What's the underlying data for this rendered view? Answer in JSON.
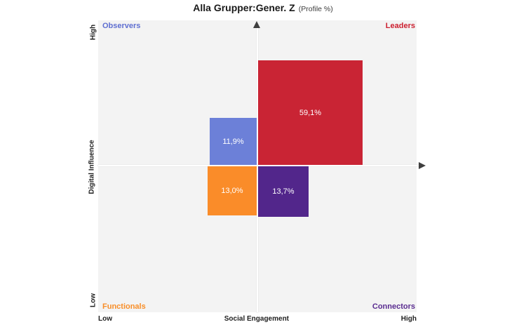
{
  "title": {
    "main": "Alla Grupper:Gener. Z",
    "suffix": "(Profile %)"
  },
  "colors": {
    "plot_background": "#f3f3f3",
    "axis_line": "#ffffff",
    "arrow": "#3f3f3f",
    "axis_text": "#1f1f1f",
    "value_text": "#ffffff"
  },
  "axes": {
    "y_title": "Digital Influence",
    "y_high": "High",
    "y_low": "Low",
    "x_title": "Social Engagement",
    "x_low": "Low",
    "x_high": "High"
  },
  "chart_data": {
    "type": "scatter",
    "variant": "quadrant-proportional-squares",
    "title": "Alla Grupper:Gener. Z (Profile %)",
    "xlabel": "Social Engagement",
    "ylabel": "Digital Influence",
    "x_ticks": [
      "Low",
      "High"
    ],
    "y_ticks": [
      "Low",
      "High"
    ],
    "grid": false,
    "legend_position": "quadrant-corners",
    "units": "Profile %",
    "quadrants": [
      {
        "name": "Observers",
        "position": "top-left",
        "value": 11.9,
        "label": "11,9%",
        "color": "#6c80d8",
        "name_color": "#5f6fd1"
      },
      {
        "name": "Leaders",
        "position": "top-right",
        "value": 59.1,
        "label": "59,1%",
        "color": "#c92434",
        "name_color": "#cc2030"
      },
      {
        "name": "Functionals",
        "position": "bottom-left",
        "value": 13.0,
        "label": "13,0%",
        "color": "#fa8c29",
        "name_color": "#f88e28"
      },
      {
        "name": "Connectors",
        "position": "bottom-right",
        "value": 13.7,
        "label": "13,7%",
        "color": "#52268b",
        "name_color": "#5a2c90"
      }
    ]
  }
}
